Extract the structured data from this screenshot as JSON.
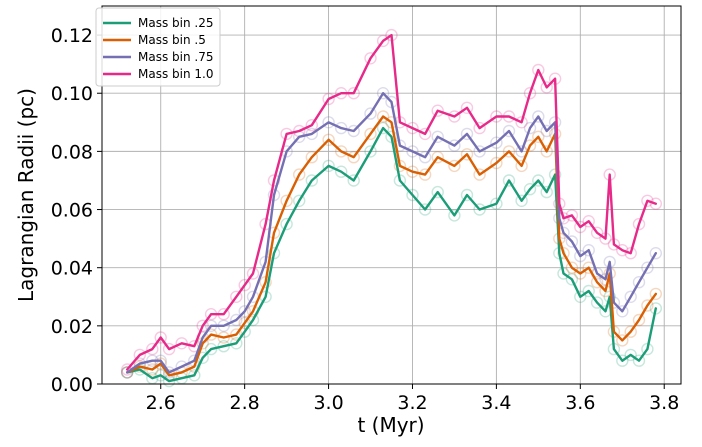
{
  "chart_data": {
    "type": "line",
    "title": "",
    "xlabel": "t (Myr)",
    "ylabel": "Lagrangian Radii (pc)",
    "xlim": [
      2.46,
      3.84
    ],
    "ylim": [
      0.0,
      0.13
    ],
    "xticks": [
      2.6,
      2.8,
      3.0,
      3.2,
      3.4,
      3.6,
      3.8
    ],
    "xtick_labels": [
      "2.6",
      "2.8",
      "3.0",
      "3.2",
      "3.4",
      "3.6",
      "3.8"
    ],
    "yticks": [
      0.0,
      0.02,
      0.04,
      0.06,
      0.08,
      0.1,
      0.12
    ],
    "ytick_labels": [
      "0.00",
      "0.02",
      "0.04",
      "0.06",
      "0.08",
      "0.10",
      "0.12"
    ],
    "grid": true,
    "legend_position": "top-left",
    "x": [
      2.52,
      2.55,
      2.58,
      2.6,
      2.62,
      2.65,
      2.68,
      2.7,
      2.72,
      2.75,
      2.78,
      2.8,
      2.82,
      2.85,
      2.87,
      2.9,
      2.93,
      2.96,
      3.0,
      3.03,
      3.06,
      3.1,
      3.13,
      3.15,
      3.17,
      3.2,
      3.23,
      3.26,
      3.3,
      3.33,
      3.36,
      3.4,
      3.43,
      3.46,
      3.48,
      3.5,
      3.52,
      3.54,
      3.55,
      3.56,
      3.58,
      3.6,
      3.62,
      3.64,
      3.66,
      3.67,
      3.68,
      3.7,
      3.72,
      3.74,
      3.76,
      3.78
    ],
    "series": [
      {
        "name": "Mass bin .25",
        "color": "#1b9e77",
        "values": [
          0.004,
          0.005,
          0.002,
          0.003,
          0.001,
          0.002,
          0.003,
          0.009,
          0.012,
          0.013,
          0.014,
          0.018,
          0.022,
          0.03,
          0.045,
          0.055,
          0.063,
          0.07,
          0.075,
          0.073,
          0.07,
          0.08,
          0.088,
          0.085,
          0.07,
          0.065,
          0.06,
          0.066,
          0.058,
          0.065,
          0.06,
          0.062,
          0.07,
          0.063,
          0.067,
          0.07,
          0.066,
          0.072,
          0.045,
          0.038,
          0.036,
          0.03,
          0.032,
          0.028,
          0.025,
          0.03,
          0.012,
          0.008,
          0.01,
          0.008,
          0.012,
          0.026
        ]
      },
      {
        "name": "Mass bin .5",
        "color": "#d95f02",
        "values": [
          0.004,
          0.006,
          0.005,
          0.007,
          0.003,
          0.004,
          0.006,
          0.014,
          0.017,
          0.016,
          0.017,
          0.021,
          0.025,
          0.035,
          0.052,
          0.063,
          0.072,
          0.078,
          0.084,
          0.08,
          0.078,
          0.086,
          0.092,
          0.09,
          0.075,
          0.073,
          0.072,
          0.078,
          0.075,
          0.079,
          0.072,
          0.076,
          0.08,
          0.075,
          0.082,
          0.085,
          0.08,
          0.086,
          0.05,
          0.045,
          0.04,
          0.038,
          0.04,
          0.035,
          0.032,
          0.038,
          0.018,
          0.015,
          0.018,
          0.022,
          0.027,
          0.031
        ]
      },
      {
        "name": "Mass bin .75",
        "color": "#7570b3",
        "values": [
          0.004,
          0.007,
          0.008,
          0.008,
          0.004,
          0.006,
          0.008,
          0.016,
          0.02,
          0.02,
          0.022,
          0.025,
          0.03,
          0.042,
          0.065,
          0.08,
          0.085,
          0.086,
          0.09,
          0.088,
          0.087,
          0.093,
          0.1,
          0.097,
          0.082,
          0.08,
          0.078,
          0.085,
          0.082,
          0.086,
          0.08,
          0.083,
          0.087,
          0.08,
          0.088,
          0.092,
          0.087,
          0.09,
          0.057,
          0.052,
          0.049,
          0.044,
          0.046,
          0.038,
          0.036,
          0.042,
          0.028,
          0.025,
          0.03,
          0.035,
          0.04,
          0.045
        ]
      },
      {
        "name": "Mass bin 1.0",
        "color": "#e7298a",
        "values": [
          0.005,
          0.01,
          0.012,
          0.016,
          0.012,
          0.014,
          0.013,
          0.02,
          0.024,
          0.024,
          0.03,
          0.034,
          0.038,
          0.055,
          0.07,
          0.086,
          0.087,
          0.089,
          0.098,
          0.1,
          0.1,
          0.112,
          0.118,
          0.12,
          0.09,
          0.088,
          0.086,
          0.094,
          0.092,
          0.095,
          0.088,
          0.092,
          0.092,
          0.09,
          0.1,
          0.108,
          0.102,
          0.105,
          0.062,
          0.057,
          0.058,
          0.054,
          0.056,
          0.052,
          0.05,
          0.072,
          0.048,
          0.046,
          0.045,
          0.055,
          0.063,
          0.062
        ]
      }
    ]
  }
}
